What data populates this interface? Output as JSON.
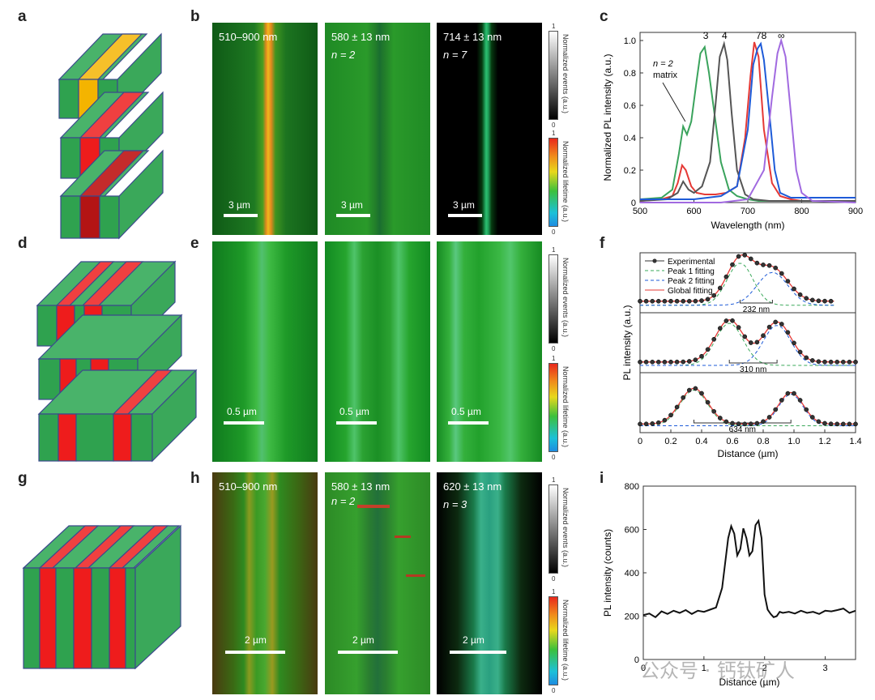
{
  "panel_labels": {
    "a": "a",
    "b": "b",
    "c": "c",
    "d": "d",
    "e": "e",
    "f": "f",
    "g": "g",
    "h": "h",
    "i": "i"
  },
  "row_b": {
    "images": [
      {
        "title": "510–900 nm",
        "n": "",
        "scalebar": "3 µm"
      },
      {
        "title": "580 ± 13 nm",
        "n": "n = 2",
        "scalebar": "3 µm"
      },
      {
        "title": "714 ± 13 nm",
        "n": "n = 7",
        "scalebar": "3 µm"
      }
    ]
  },
  "row_e": {
    "images": [
      {
        "scalebar": "0.5 µm"
      },
      {
        "scalebar": "0.5 µm"
      },
      {
        "scalebar": "0.5 µm"
      }
    ]
  },
  "row_h": {
    "images": [
      {
        "title": "510–900 nm",
        "n": "",
        "scalebar": "2 µm"
      },
      {
        "title": "580 ± 13 nm",
        "n": "n = 2",
        "scalebar": "2 µm"
      },
      {
        "title": "620 ± 13 nm",
        "n": "n = 3",
        "scalebar": "2 µm"
      }
    ]
  },
  "colorbars": {
    "events_title": "Normalized events (a.u.)",
    "lifetime_title": "Normalized lifetime (a.u.)",
    "max": "1",
    "min": "0"
  },
  "chart_data": [
    {
      "id": "c",
      "type": "line",
      "xlabel": "Wavelength (nm)",
      "ylabel": "Normalized PL intensity (a.u.)",
      "xlim": [
        500,
        900
      ],
      "ylim": [
        0,
        1.05
      ],
      "xticks": [
        "500",
        "600",
        "700",
        "800",
        "900"
      ],
      "yticks": [
        "0",
        "0.2",
        "0.4",
        "0.6",
        "0.8",
        "1.0"
      ],
      "peak_labels": [
        {
          "text": "3",
          "x": 622
        },
        {
          "text": "4",
          "x": 657
        },
        {
          "text": "78",
          "x": 725
        },
        {
          "text": "∞",
          "x": 762
        }
      ],
      "annotation": {
        "line1": "n = 2",
        "line2": "matrix"
      },
      "series": [
        {
          "name": "n=2 red",
          "color": "#e53935",
          "x": [
            500,
            540,
            560,
            570,
            578,
            585,
            595,
            605,
            620,
            640,
            660,
            680,
            695,
            705,
            712,
            720,
            730,
            745,
            760,
            780,
            800,
            850,
            900
          ],
          "y": [
            0.01,
            0.02,
            0.04,
            0.12,
            0.23,
            0.2,
            0.1,
            0.06,
            0.05,
            0.05,
            0.06,
            0.1,
            0.4,
            0.78,
            0.99,
            0.9,
            0.45,
            0.12,
            0.04,
            0.02,
            0.01,
            0.01,
            0.01
          ]
        },
        {
          "name": "green",
          "color": "#3aa35c",
          "x": [
            500,
            540,
            560,
            572,
            580,
            587,
            595,
            605,
            612,
            620,
            628,
            638,
            650,
            665,
            680,
            700,
            720,
            760,
            800,
            850,
            900
          ],
          "y": [
            0.02,
            0.03,
            0.08,
            0.3,
            0.47,
            0.42,
            0.5,
            0.75,
            0.92,
            0.96,
            0.8,
            0.55,
            0.25,
            0.08,
            0.04,
            0.02,
            0.01,
            0.01,
            0.01,
            0.01,
            0.01
          ]
        },
        {
          "name": "dark",
          "color": "#555555",
          "x": [
            500,
            550,
            570,
            580,
            590,
            600,
            615,
            630,
            640,
            648,
            656,
            662,
            670,
            680,
            695,
            710,
            740,
            800,
            900
          ],
          "y": [
            0.01,
            0.02,
            0.06,
            0.13,
            0.08,
            0.06,
            0.1,
            0.25,
            0.6,
            0.9,
            0.98,
            0.88,
            0.55,
            0.2,
            0.05,
            0.02,
            0.01,
            0.01,
            0.01
          ]
        },
        {
          "name": "blue",
          "color": "#1e5bd8",
          "x": [
            500,
            600,
            650,
            680,
            700,
            710,
            718,
            724,
            730,
            740,
            750,
            760,
            780,
            800,
            850,
            900
          ],
          "y": [
            0.02,
            0.02,
            0.04,
            0.1,
            0.45,
            0.85,
            0.95,
            0.98,
            0.88,
            0.55,
            0.2,
            0.06,
            0.03,
            0.03,
            0.03,
            0.03
          ]
        },
        {
          "name": "purple",
          "color": "#a16ae0",
          "x": [
            500,
            650,
            700,
            730,
            745,
            755,
            762,
            770,
            780,
            790,
            800,
            820,
            900
          ],
          "y": [
            0.0,
            0.0,
            0.02,
            0.2,
            0.65,
            0.92,
            1.0,
            0.9,
            0.55,
            0.2,
            0.06,
            0.01,
            0.0
          ]
        }
      ]
    },
    {
      "id": "f",
      "type": "line",
      "xlabel": "Distance (µm)",
      "ylabel": "PL intensity (a.u.)",
      "xlim": [
        0,
        1.4
      ],
      "xticks": [
        "0",
        "0.2",
        "0.4",
        "0.6",
        "0.8",
        "1.0",
        "1.2",
        "1.4"
      ],
      "legend": [
        "Experimental",
        "Peak 1 fitting",
        "Peak 2 fitting",
        "Global fitting"
      ],
      "subplots": [
        {
          "label": "232 nm",
          "peaks": [
            {
              "center": 0.65,
              "height": 1.0,
              "width": 0.085
            },
            {
              "center": 0.86,
              "height": 0.78,
              "width": 0.1
            }
          ],
          "base": 0.12,
          "xmax": 1.26
        },
        {
          "label": "310 nm",
          "peaks": [
            {
              "center": 0.58,
              "height": 1.0,
              "width": 0.09
            },
            {
              "center": 0.89,
              "height": 0.95,
              "width": 0.09
            }
          ],
          "base": 0.1,
          "xmax": 1.4
        },
        {
          "label": "634 nm",
          "peaks": [
            {
              "center": 0.35,
              "height": 0.85,
              "width": 0.09
            },
            {
              "center": 0.98,
              "height": 0.75,
              "width": 0.08
            }
          ],
          "base": 0.05,
          "xmax": 1.4
        }
      ]
    },
    {
      "id": "i",
      "type": "line",
      "xlabel": "Distance (µm)",
      "ylabel": "PL intensity (counts)",
      "xlim": [
        0,
        3.5
      ],
      "ylim": [
        0,
        800
      ],
      "xticks": [
        "0",
        "1",
        "2",
        "3"
      ],
      "yticks": [
        "0",
        "200",
        "400",
        "600",
        "800"
      ],
      "series": [
        {
          "name": "profile",
          "color": "#111111",
          "x": [
            0,
            0.1,
            0.2,
            0.3,
            0.4,
            0.5,
            0.6,
            0.7,
            0.8,
            0.9,
            1.0,
            1.1,
            1.2,
            1.3,
            1.4,
            1.45,
            1.5,
            1.55,
            1.6,
            1.65,
            1.7,
            1.75,
            1.8,
            1.85,
            1.9,
            1.95,
            2.0,
            2.05,
            2.1,
            2.15,
            2.2,
            2.25,
            2.3,
            2.4,
            2.5,
            2.6,
            2.7,
            2.8,
            2.9,
            3.0,
            3.1,
            3.2,
            3.3,
            3.4,
            3.5
          ],
          "y": [
            205,
            212,
            195,
            222,
            210,
            225,
            215,
            228,
            210,
            225,
            220,
            230,
            240,
            330,
            560,
            615,
            580,
            480,
            510,
            605,
            560,
            480,
            500,
            620,
            640,
            560,
            300,
            230,
            210,
            195,
            200,
            220,
            215,
            220,
            212,
            225,
            215,
            220,
            210,
            225,
            222,
            228,
            235,
            215,
            225
          ]
        }
      ]
    }
  ],
  "watermark": "公众号 · 钙钛矿人"
}
